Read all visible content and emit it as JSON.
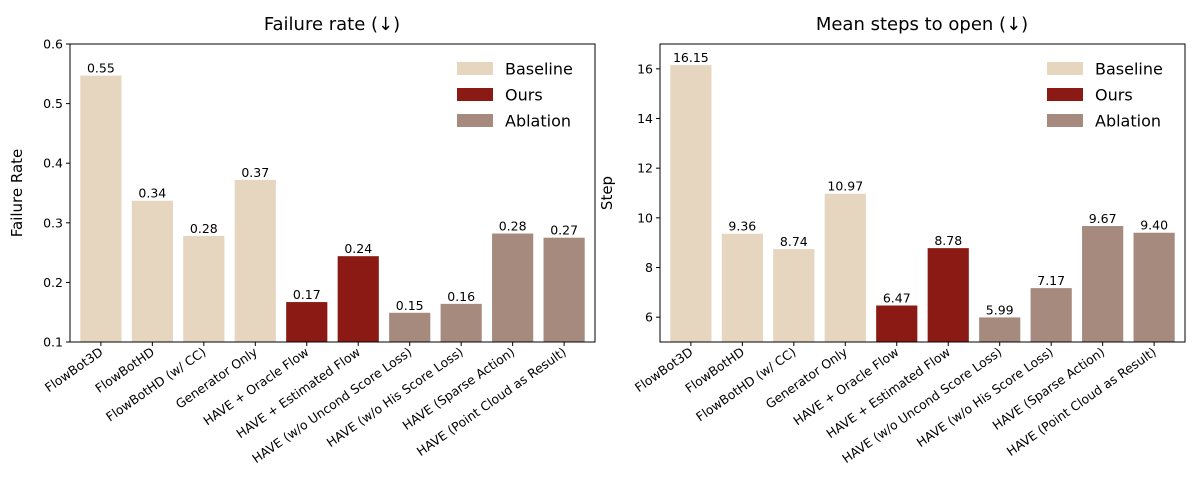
{
  "colors": {
    "baseline": "#e6d5bf",
    "ours": "#8b1a14",
    "ablation": "#a68a7e"
  },
  "legend": {
    "baseline": "Baseline",
    "ours": "Ours",
    "ablation": "Ablation"
  },
  "chart_data": [
    {
      "type": "bar",
      "title": "Failure rate (↓)",
      "xlabel": "",
      "ylabel": "Failure Rate",
      "ylim": [
        0.1,
        0.6
      ],
      "yticks": [
        0.1,
        0.2,
        0.3,
        0.4,
        0.5,
        0.6
      ],
      "ytick_labels": [
        "0.1",
        "0.2",
        "0.3",
        "0.4",
        "0.5",
        "0.6"
      ],
      "legend_position": "top-right",
      "categories": [
        "FlowBot3D",
        "FlowBotHD",
        "FlowBotHD (w/ CC)",
        "Generator Only",
        "HAVE + Oracle Flow",
        "HAVE + Estimated Flow",
        "HAVE (w/o Uncond Score Loss)",
        "HAVE (w/o His Score Loss)",
        "HAVE (Sparse Action)",
        "HAVE (Point Cloud as Result)"
      ],
      "groups": [
        "baseline",
        "baseline",
        "baseline",
        "baseline",
        "ours",
        "ours",
        "ablation",
        "ablation",
        "ablation",
        "ablation"
      ],
      "values": [
        0.547,
        0.337,
        0.278,
        0.372,
        0.167,
        0.244,
        0.149,
        0.164,
        0.282,
        0.275
      ],
      "value_labels": [
        "0.55",
        "0.34",
        "0.28",
        "0.37",
        "0.17",
        "0.24",
        "0.15",
        "0.16",
        "0.28",
        "0.27"
      ]
    },
    {
      "type": "bar",
      "title": "Mean steps to open (↓)",
      "xlabel": "",
      "ylabel": "Step",
      "ylim": [
        5,
        17
      ],
      "yticks": [
        6,
        8,
        10,
        12,
        14,
        16
      ],
      "ytick_labels": [
        "6",
        "8",
        "10",
        "12",
        "14",
        "16"
      ],
      "legend_position": "top-right",
      "categories": [
        "FlowBot3D",
        "FlowBotHD",
        "FlowBotHD (w/ CC)",
        "Generator Only",
        "HAVE + Oracle Flow",
        "HAVE + Estimated Flow",
        "HAVE (w/o Uncond Score Loss)",
        "HAVE (w/o His Score Loss)",
        "HAVE (Sparse Action)",
        "HAVE (Point Cloud as Result)"
      ],
      "groups": [
        "baseline",
        "baseline",
        "baseline",
        "baseline",
        "ours",
        "ours",
        "ablation",
        "ablation",
        "ablation",
        "ablation"
      ],
      "values": [
        16.15,
        9.36,
        8.74,
        10.97,
        6.47,
        8.78,
        5.99,
        7.17,
        9.67,
        9.4
      ],
      "value_labels": [
        "16.15",
        "9.36",
        "8.74",
        "10.97",
        "6.47",
        "8.78",
        "5.99",
        "7.17",
        "9.67",
        "9.40"
      ]
    }
  ]
}
